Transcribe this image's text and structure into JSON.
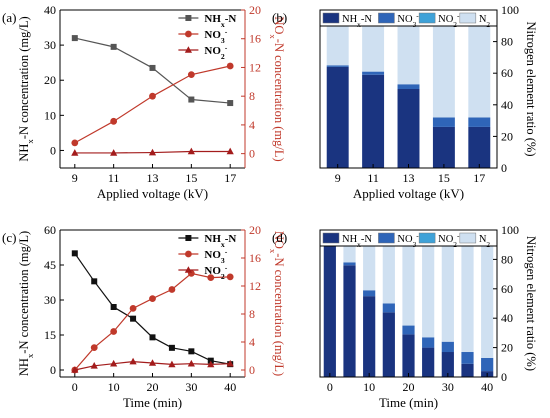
{
  "chart_data": [
    {
      "panel": "(a)",
      "type": "line",
      "x": [
        9,
        11,
        13,
        15,
        17
      ],
      "xlabel": "Applied voltage (kV)",
      "xticks": [
        "9",
        "11",
        "13",
        "15",
        "17"
      ],
      "ylabel_left": "NH_x-N  concentration (mg/L)",
      "ylabel_right": "NO_x-N concentration (mg/L)",
      "ylim_left": [
        -5,
        40
      ],
      "yticks_left": [
        0,
        10,
        20,
        30,
        40
      ],
      "ylim_right": [
        -2,
        20
      ],
      "yticks_right": [
        0,
        4,
        8,
        12,
        16,
        20
      ],
      "colors": {
        "nh": "#555555",
        "no3": "#c0392b",
        "no2": "#a31c1c",
        "right_axis": "#c0392b"
      },
      "series": [
        {
          "name": "NH_x-N",
          "axis": "left",
          "marker": "square",
          "values": [
            32,
            29.5,
            23.5,
            14.5,
            13.5
          ]
        },
        {
          "name": "NO_3^-",
          "axis": "right",
          "marker": "circle",
          "values": [
            1.5,
            4.5,
            8.0,
            11.0,
            12.2
          ]
        },
        {
          "name": "NO_2^-",
          "axis": "right",
          "marker": "triangle",
          "values": [
            0.1,
            0.1,
            0.15,
            0.3,
            0.3
          ]
        }
      ],
      "legend": "top-right"
    },
    {
      "panel": "(b)",
      "type": "bar",
      "stacked": true,
      "categories": [
        "9",
        "11",
        "13",
        "15",
        "17"
      ],
      "xlabel": "Applied voltage (kV)",
      "ylabel": "Nitrogen element ratio (%)",
      "ylim": [
        0,
        100
      ],
      "yticks": [
        0,
        20,
        40,
        60,
        80,
        100
      ],
      "series": [
        {
          "name": "NH_x-N",
          "color": "#1a3480",
          "values": [
            64,
            59,
            50,
            26,
            26
          ]
        },
        {
          "name": "NO_3^-",
          "color": "#2f65b8",
          "values": [
            1,
            2,
            3,
            6,
            6
          ]
        },
        {
          "name": "NO_2^-",
          "color": "#3fa2d8",
          "values": [
            0,
            0,
            0,
            0,
            0
          ]
        },
        {
          "name": "N_2",
          "color": "#cfe0f1",
          "values": [
            35,
            39,
            47,
            68,
            68
          ]
        }
      ],
      "legend": "top"
    },
    {
      "panel": "(c)",
      "type": "line",
      "x": [
        0,
        5,
        10,
        15,
        20,
        25,
        30,
        35,
        40
      ],
      "xlabel": "Time (min)",
      "xticks": [
        "0",
        "10",
        "20",
        "30",
        "40"
      ],
      "ylabel_left": "NH_x-N  concentration (mg/L)",
      "ylabel_right": "NO_x-N concentration (mg/L)",
      "ylim_left": [
        -3,
        60
      ],
      "yticks_left": [
        0,
        15,
        30,
        45,
        60
      ],
      "ylim_right": [
        -1,
        20
      ],
      "yticks_right": [
        0,
        4,
        8,
        12,
        16,
        20
      ],
      "colors": {
        "nh": "#111111",
        "no3": "#c0392b",
        "no2": "#a31c1c",
        "right_axis": "#c0392b"
      },
      "series": [
        {
          "name": "NH_x-N",
          "axis": "left",
          "marker": "square",
          "values": [
            50,
            38,
            27,
            22,
            14,
            9.5,
            8,
            4,
            2.5
          ]
        },
        {
          "name": "NO_3^-",
          "axis": "right",
          "marker": "circle",
          "values": [
            0,
            3.2,
            5.5,
            8.8,
            10.2,
            11.5,
            13.8,
            13.2,
            13.3
          ]
        },
        {
          "name": "NO_2^-",
          "axis": "right",
          "marker": "triangle",
          "values": [
            0,
            0.6,
            0.9,
            1.2,
            1.0,
            0.8,
            0.9,
            0.8,
            0.9
          ]
        }
      ],
      "legend": "top-right"
    },
    {
      "panel": "(d)",
      "type": "bar",
      "stacked": true,
      "categories": [
        "0",
        "5",
        "10",
        "15",
        "20",
        "25",
        "30",
        "35",
        "40"
      ],
      "xlabel": "Time (min)",
      "xticks": [
        "0",
        "10",
        "20",
        "30",
        "40"
      ],
      "ylabel": "Nitrogen element ratio (%)",
      "ylim": [
        0,
        100
      ],
      "yticks": [
        0,
        20,
        40,
        60,
        80,
        100
      ],
      "series": [
        {
          "name": "NH_x-N",
          "color": "#1a3480",
          "values": [
            100,
            76,
            55,
            44,
            29,
            20,
            17,
            9,
            4
          ]
        },
        {
          "name": "NO_3^-",
          "color": "#2f65b8",
          "values": [
            0,
            2,
            4,
            6,
            6,
            7,
            7,
            8,
            9
          ]
        },
        {
          "name": "NO_2^-",
          "color": "#3fa2d8",
          "values": [
            0,
            0,
            0,
            0,
            0,
            0,
            0,
            0,
            0
          ]
        },
        {
          "name": "N_2",
          "color": "#cfe0f1",
          "values": [
            0,
            22,
            41,
            50,
            65,
            73,
            76,
            83,
            87
          ]
        }
      ],
      "legend": "top"
    }
  ]
}
